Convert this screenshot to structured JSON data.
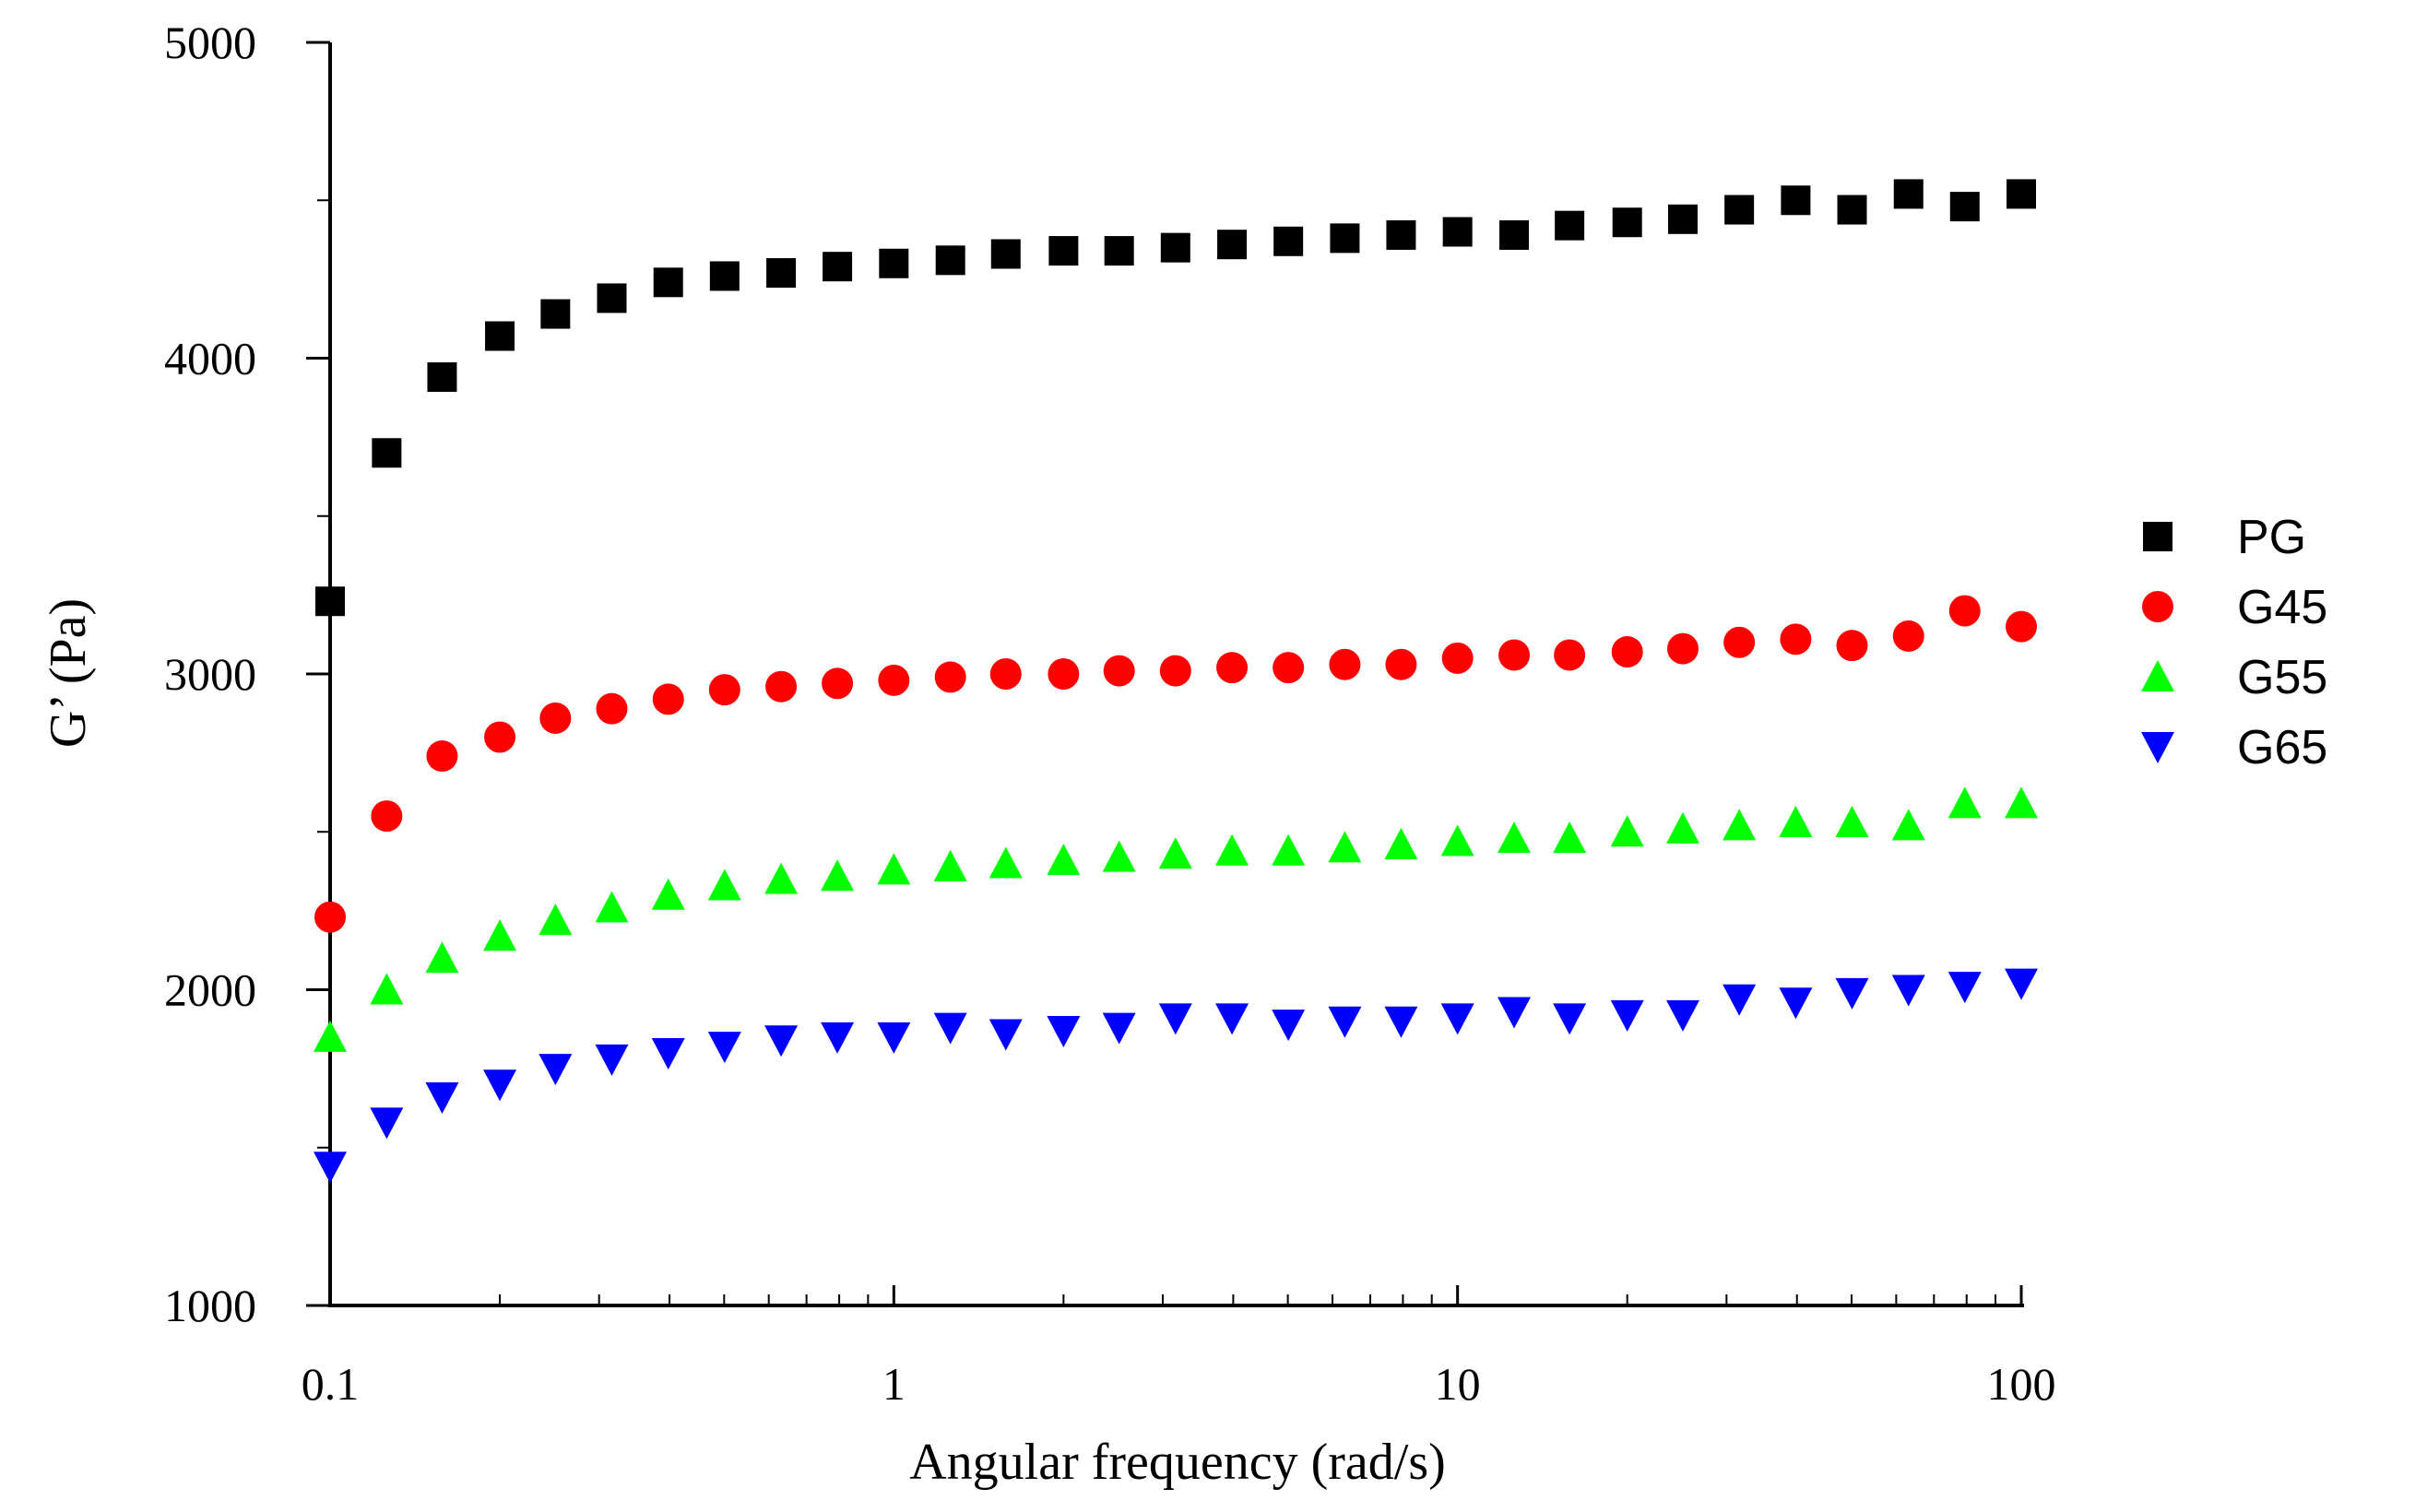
{
  "chart_data": {
    "type": "scatter",
    "title": "",
    "xlabel": "Angular frequency (rad/s)",
    "ylabel": "G’ (Pa)",
    "xscale": "log",
    "xlim": [
      0.1,
      100
    ],
    "ylim": [
      1000,
      5000
    ],
    "x_ticks": [
      {
        "value": 0.1,
        "label": "0.1"
      },
      {
        "value": 1,
        "label": "1"
      },
      {
        "value": 10,
        "label": "10"
      },
      {
        "value": 100,
        "label": "100"
      }
    ],
    "y_ticks": [
      {
        "value": 1000,
        "label": "1000"
      },
      {
        "value": 2000,
        "label": "2000"
      },
      {
        "value": 3000,
        "label": "3000"
      },
      {
        "value": 4000,
        "label": "4000"
      },
      {
        "value": 5000,
        "label": "5000"
      }
    ],
    "y_minor_ticks": [
      1500,
      2500,
      3500,
      4500
    ],
    "grid": false,
    "legend_position": "right",
    "x": [
      0.1,
      0.126,
      0.158,
      0.2,
      0.251,
      0.316,
      0.398,
      0.501,
      0.631,
      0.794,
      1,
      1.26,
      1.58,
      2,
      2.51,
      3.16,
      3.98,
      5.01,
      6.31,
      7.94,
      10,
      12.6,
      15.8,
      20,
      25.1,
      31.6,
      39.8,
      50.1,
      63.1,
      79.4,
      100
    ],
    "series": [
      {
        "name": "PG",
        "marker": "square",
        "color": "#000000",
        "values": [
          3230,
          3700,
          3940,
          4070,
          4140,
          4190,
          4240,
          4260,
          4270,
          4290,
          4300,
          4310,
          4330,
          4340,
          4340,
          4350,
          4360,
          4370,
          4380,
          4390,
          4400,
          4390,
          4420,
          4430,
          4440,
          4470,
          4500,
          4470,
          4520,
          4480,
          4520
        ]
      },
      {
        "name": "G45",
        "marker": "circle",
        "color": "#ff0000",
        "values": [
          2230,
          2550,
          2740,
          2800,
          2860,
          2890,
          2920,
          2950,
          2960,
          2970,
          2980,
          2990,
          3000,
          3000,
          3010,
          3010,
          3020,
          3020,
          3030,
          3030,
          3050,
          3060,
          3060,
          3070,
          3080,
          3100,
          3110,
          3090,
          3120,
          3200,
          3150
        ]
      },
      {
        "name": "G55",
        "marker": "triangle-up",
        "color": "#00ff00",
        "values": [
          1850,
          2000,
          2100,
          2170,
          2220,
          2260,
          2300,
          2330,
          2350,
          2360,
          2380,
          2390,
          2400,
          2410,
          2420,
          2430,
          2440,
          2440,
          2450,
          2460,
          2470,
          2480,
          2480,
          2500,
          2510,
          2520,
          2530,
          2530,
          2520,
          2590,
          2590
        ]
      },
      {
        "name": "G65",
        "marker": "triangle-down",
        "color": "#0000ff",
        "values": [
          1440,
          1580,
          1660,
          1700,
          1750,
          1780,
          1800,
          1820,
          1840,
          1850,
          1850,
          1880,
          1860,
          1870,
          1880,
          1910,
          1910,
          1890,
          1900,
          1900,
          1910,
          1930,
          1910,
          1920,
          1920,
          1970,
          1960,
          1990,
          2000,
          2010,
          2020
        ]
      }
    ]
  }
}
